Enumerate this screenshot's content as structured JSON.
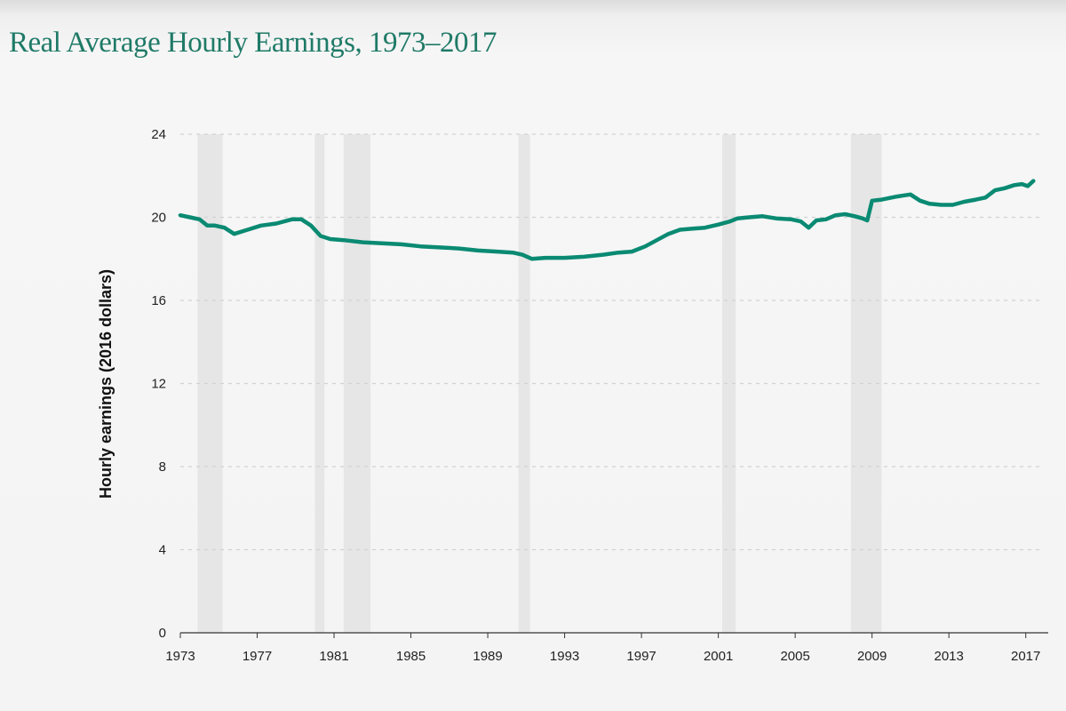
{
  "title": "Real Average Hourly Earnings, 1973–2017",
  "colors": {
    "line": "#0a8a72",
    "title": "#1f7a67",
    "recession_band": "#e6e6e6",
    "grid": "#d2d2d2"
  },
  "chart_data": {
    "type": "line",
    "title": "Real Average Hourly Earnings, 1973–2017",
    "xlabel": "",
    "ylabel": "Hourly earnings (2016 dollars)",
    "xlim": [
      1973,
      2017.8
    ],
    "ylim": [
      0,
      24
    ],
    "yticks": [
      0,
      4,
      8,
      12,
      16,
      20,
      24
    ],
    "xticks": [
      "1973",
      "1977",
      "1981",
      "1985",
      "1989",
      "1993",
      "1997",
      "2001",
      "2005",
      "2009",
      "2013",
      "2017"
    ],
    "grid": "horizontal dashed",
    "recessions": [
      [
        1973.9,
        1975.2
      ],
      [
        1980.0,
        1980.5
      ],
      [
        1981.5,
        1982.9
      ],
      [
        1990.6,
        1991.2
      ],
      [
        2001.2,
        2001.9
      ],
      [
        2007.9,
        2009.5
      ]
    ],
    "series": [
      {
        "name": "",
        "x": [
          1973.0,
          1973.5,
          1974.0,
          1974.4,
          1974.8,
          1975.3,
          1975.8,
          1976.5,
          1977.2,
          1978.0,
          1978.8,
          1979.3,
          1979.8,
          1980.3,
          1980.8,
          1981.5,
          1982.5,
          1983.5,
          1984.5,
          1985.5,
          1986.5,
          1987.5,
          1988.5,
          1989.5,
          1990.3,
          1990.8,
          1991.3,
          1992.0,
          1993.0,
          1994.0,
          1995.0,
          1995.8,
          1996.5,
          1997.2,
          1997.8,
          1998.4,
          1999.0,
          1999.6,
          2000.3,
          2001.0,
          2001.6,
          2002.0,
          2002.6,
          2003.3,
          2004.0,
          2004.8,
          2005.3,
          2005.7,
          2006.1,
          2006.6,
          2007.1,
          2007.6,
          2008.1,
          2008.5,
          2008.75,
          2009.0,
          2009.5,
          2010.3,
          2011.0,
          2011.5,
          2012.0,
          2012.6,
          2013.2,
          2013.8,
          2014.4,
          2014.9,
          2015.4,
          2015.9,
          2016.4,
          2016.8,
          2017.1,
          2017.4
        ],
        "values": [
          20.1,
          20.0,
          19.9,
          19.6,
          19.6,
          19.5,
          19.2,
          19.4,
          19.6,
          19.7,
          19.9,
          19.9,
          19.6,
          19.1,
          18.95,
          18.9,
          18.8,
          18.75,
          18.7,
          18.6,
          18.55,
          18.5,
          18.4,
          18.35,
          18.3,
          18.2,
          18.0,
          18.05,
          18.05,
          18.1,
          18.2,
          18.3,
          18.35,
          18.6,
          18.9,
          19.2,
          19.4,
          19.45,
          19.5,
          19.65,
          19.8,
          19.95,
          20.0,
          20.05,
          19.95,
          19.9,
          19.8,
          19.5,
          19.85,
          19.9,
          20.1,
          20.15,
          20.05,
          19.95,
          19.85,
          20.8,
          20.85,
          21.0,
          21.1,
          20.8,
          20.65,
          20.6,
          20.6,
          20.75,
          20.85,
          20.95,
          21.3,
          21.4,
          21.55,
          21.6,
          21.5,
          21.75
        ]
      }
    ]
  }
}
